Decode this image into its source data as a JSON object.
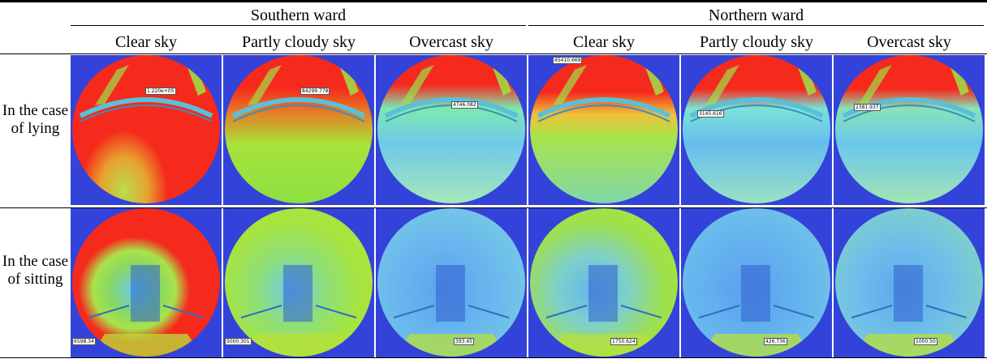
{
  "table": {
    "wards": [
      {
        "label": "Southern ward"
      },
      {
        "label": "Northern ward"
      }
    ],
    "conditions": [
      {
        "label": "Clear sky"
      },
      {
        "label": "Partly cloudy sky"
      },
      {
        "label": "Overcast sky"
      },
      {
        "label": "Clear sky"
      },
      {
        "label": "Partly cloudy sky"
      },
      {
        "label": "Overcast sky"
      }
    ],
    "rows": [
      {
        "label": "In the case of lying",
        "cells": [
          {
            "value": "1.220e+05",
            "background": "#f52a1c",
            "gradient": "radial-gradient(ellipse at 35% 92%, #b7e04a 0%, #e8a030 18%, transparent 32%)"
          },
          {
            "value": "84299.778",
            "background": "#7fe03a",
            "gradient": "linear-gradient(180deg, #f52a1c 0%, #f52a1c 22%, #e87a24 38%, #a8e33a 60%, #8ce043 100%)"
          },
          {
            "value": "4746.082",
            "background": "#6fd0e8",
            "gradient": "linear-gradient(180deg, #f52a1c 0%, #f52a1c 20%, #7de9b0 36%, #6fc9ea 60%, #a6e8b8 100%)"
          },
          {
            "value": "45410.669",
            "background": "#86df42",
            "gradient": "linear-gradient(180deg, #f52a1c 0%, #f52a1c 25%, #f0c23a 40%, #a9e34a 55%, #7fd8a8 100%)"
          },
          {
            "value": "3145.616",
            "background": "#6fc7ea",
            "gradient": "linear-gradient(180deg, #f52a1c 0%, #f52a1c 23%, #7ae3d6 36%, #66bdee 60%, #9ae2c2 100%)"
          },
          {
            "value": "2381.937",
            "background": "#6fc7ea",
            "gradient": "linear-gradient(180deg, #f52a1c 0%, #f52a1c 23%, #88e3b8 36%, #6ac7ec 60%, #a2e5b2 100%)"
          }
        ]
      },
      {
        "label": "In the case of sitting",
        "cells": [
          {
            "value": "6598.34",
            "background": "#f52a1c",
            "gradient": "radial-gradient(ellipse at 42% 55%, #69c9e8 0%, #8ad860 22%, #a9e24a 34%, transparent 46%)"
          },
          {
            "value": "5000.301",
            "background": "#9be14a",
            "gradient": "radial-gradient(ellipse at 45% 55%, #6ec9e9 0%, #8fdf7a 30%, #a6e43f 60%, #b8e23a 100%)"
          },
          {
            "value": "393.45",
            "background": "#6cb8ee",
            "gradient": "radial-gradient(ellipse at 45% 55%, #5aa3ee 0%, #6ab8ee 45%, #7cd4df 100%)"
          },
          {
            "value": "1750.624",
            "background": "#9fe24a",
            "gradient": "radial-gradient(ellipse at 42% 55%, #62b8ee 0%, #7fd0c8 30%, #9fe14a 60%, #a7e33c 100%)"
          },
          {
            "value": "426.736",
            "background": "#64b4ee",
            "gradient": "radial-gradient(ellipse at 45% 55%, #5a9fee 0%, #66b6ee 50%, #79ccde 100%)"
          },
          {
            "value": "1000.50",
            "background": "#73c9e0",
            "gradient": "radial-gradient(ellipse at 45% 55%, #5fa8ee 0%, #6ebeea 40%, #8adcb6 100%)"
          }
        ]
      }
    ]
  }
}
